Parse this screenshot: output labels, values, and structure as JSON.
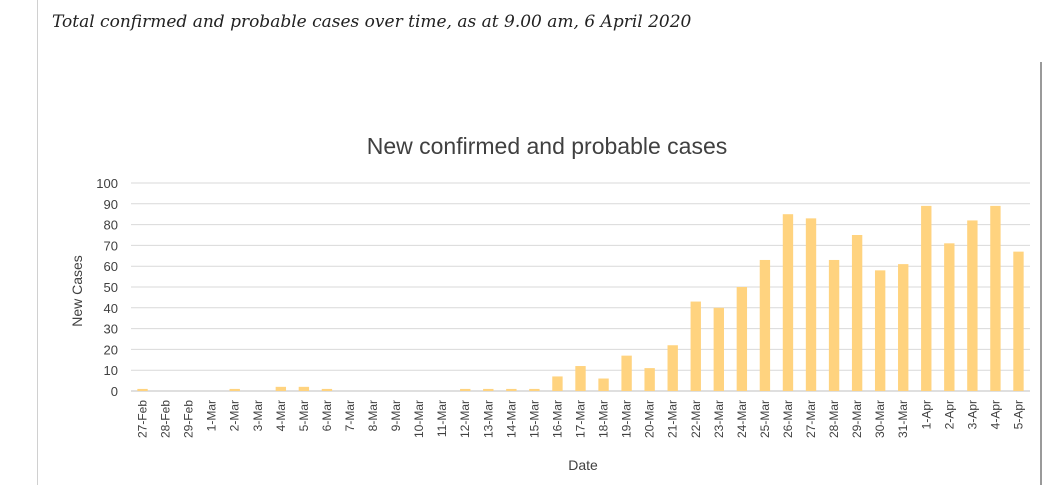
{
  "caption": "Total confirmed and probable cases over time, as at 9.00 am, 6 April 2020",
  "chart_data": {
    "type": "bar",
    "title": "New confirmed and probable cases",
    "xlabel": "Date",
    "ylabel": "New Cases",
    "ylim": [
      0,
      100
    ],
    "yticks": [
      0,
      10,
      20,
      30,
      40,
      50,
      60,
      70,
      80,
      90,
      100
    ],
    "grid": true,
    "legend": "none",
    "bar_color": "#ffd37f",
    "categories": [
      "27-Feb",
      "28-Feb",
      "29-Feb",
      "1-Mar",
      "2-Mar",
      "3-Mar",
      "4-Mar",
      "5-Mar",
      "6-Mar",
      "7-Mar",
      "8-Mar",
      "9-Mar",
      "10-Mar",
      "11-Mar",
      "12-Mar",
      "13-Mar",
      "14-Mar",
      "15-Mar",
      "16-Mar",
      "17-Mar",
      "18-Mar",
      "19-Mar",
      "20-Mar",
      "21-Mar",
      "22-Mar",
      "23-Mar",
      "24-Mar",
      "25-Mar",
      "26-Mar",
      "27-Mar",
      "28-Mar",
      "29-Mar",
      "30-Mar",
      "31-Mar",
      "1-Apr",
      "2-Apr",
      "3-Apr",
      "4-Apr",
      "5-Apr"
    ],
    "values": [
      1,
      0,
      0,
      0,
      1,
      0,
      2,
      2,
      1,
      0,
      0,
      0,
      0,
      0,
      1,
      1,
      1,
      1,
      7,
      12,
      6,
      17,
      11,
      22,
      43,
      40,
      50,
      63,
      85,
      83,
      63,
      75,
      58,
      61,
      89,
      71,
      82,
      89,
      67
    ]
  }
}
